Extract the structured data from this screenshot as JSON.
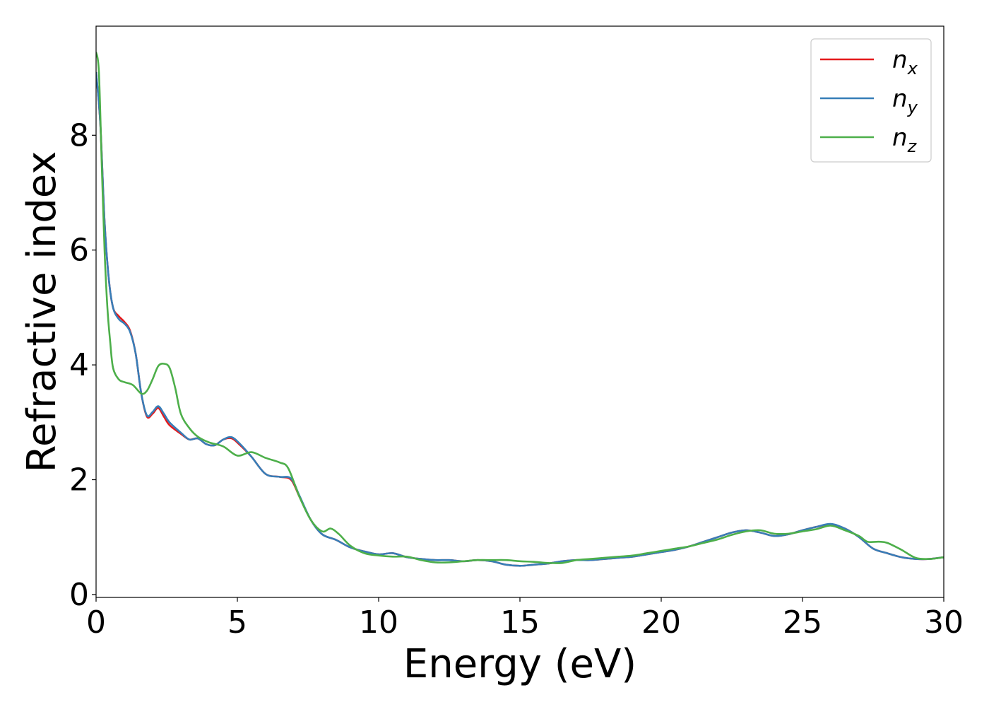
{
  "chart_data": {
    "type": "line",
    "title": "",
    "xlabel": "Energy (eV)",
    "ylabel": "Refractive index",
    "xlim": [
      0,
      30
    ],
    "ylim": [
      -0.05,
      9.9
    ],
    "xticks": [
      0,
      5,
      10,
      15,
      20,
      25,
      30
    ],
    "yticks": [
      0,
      2,
      4,
      6,
      8
    ],
    "grid": false,
    "legend_position": "top-right",
    "series": [
      {
        "name": "n",
        "subscript": "x",
        "color": "#e41a1c",
        "x": [
          0.0,
          0.15,
          0.3,
          0.45,
          0.6,
          0.8,
          1.0,
          1.2,
          1.4,
          1.6,
          1.8,
          2.0,
          2.2,
          2.4,
          2.6,
          3.0,
          3.3,
          3.6,
          3.9,
          4.2,
          4.5,
          4.8,
          5.1,
          5.5,
          6.0,
          6.5,
          6.9,
          7.2,
          7.6,
          8.0,
          8.5,
          9.0,
          9.5,
          10.0,
          10.5,
          11.0,
          11.5,
          12.0,
          12.5,
          13.0,
          13.5,
          14.0,
          14.5,
          15.0,
          15.5,
          16.0,
          16.5,
          17.0,
          17.5,
          18.0,
          18.5,
          19.0,
          19.5,
          20.0,
          20.5,
          21.0,
          21.5,
          22.0,
          22.5,
          23.0,
          23.5,
          24.0,
          24.5,
          25.0,
          25.5,
          26.0,
          26.5,
          27.0,
          27.5,
          28.0,
          28.5,
          29.0,
          29.5,
          30.0
        ],
        "y": [
          9.1,
          8.2,
          6.5,
          5.5,
          5.0,
          4.85,
          4.75,
          4.6,
          4.2,
          3.5,
          3.1,
          3.15,
          3.25,
          3.1,
          2.95,
          2.8,
          2.7,
          2.72,
          2.62,
          2.6,
          2.7,
          2.72,
          2.6,
          2.4,
          2.1,
          2.05,
          2.0,
          1.7,
          1.3,
          1.05,
          0.95,
          0.82,
          0.75,
          0.7,
          0.72,
          0.65,
          0.62,
          0.6,
          0.6,
          0.58,
          0.6,
          0.58,
          0.52,
          0.5,
          0.52,
          0.54,
          0.58,
          0.6,
          0.6,
          0.62,
          0.64,
          0.66,
          0.7,
          0.74,
          0.78,
          0.84,
          0.92,
          1.0,
          1.08,
          1.12,
          1.08,
          1.02,
          1.05,
          1.12,
          1.18,
          1.22,
          1.15,
          1.0,
          0.8,
          0.72,
          0.65,
          0.62,
          0.62,
          0.65
        ]
      },
      {
        "name": "n",
        "subscript": "y",
        "color": "#377eb8",
        "x": [
          0.0,
          0.15,
          0.3,
          0.45,
          0.6,
          0.8,
          1.0,
          1.2,
          1.4,
          1.6,
          1.8,
          2.0,
          2.2,
          2.4,
          2.6,
          3.0,
          3.3,
          3.6,
          3.9,
          4.2,
          4.5,
          4.8,
          5.1,
          5.5,
          6.0,
          6.5,
          6.9,
          7.2,
          7.6,
          8.0,
          8.5,
          9.0,
          9.5,
          10.0,
          10.5,
          11.0,
          11.5,
          12.0,
          12.5,
          13.0,
          13.5,
          14.0,
          14.5,
          15.0,
          15.5,
          16.0,
          16.5,
          17.0,
          17.5,
          18.0,
          18.5,
          19.0,
          19.5,
          20.0,
          20.5,
          21.0,
          21.5,
          22.0,
          22.5,
          23.0,
          23.5,
          24.0,
          24.5,
          25.0,
          25.5,
          26.0,
          26.5,
          27.0,
          27.5,
          28.0,
          28.5,
          29.0,
          29.5,
          30.0
        ],
        "y": [
          9.1,
          8.2,
          6.5,
          5.5,
          5.0,
          4.8,
          4.72,
          4.58,
          4.2,
          3.5,
          3.12,
          3.18,
          3.28,
          3.15,
          3.0,
          2.82,
          2.7,
          2.72,
          2.62,
          2.6,
          2.7,
          2.74,
          2.62,
          2.4,
          2.1,
          2.05,
          2.02,
          1.72,
          1.3,
          1.05,
          0.95,
          0.82,
          0.75,
          0.7,
          0.72,
          0.65,
          0.62,
          0.6,
          0.6,
          0.58,
          0.6,
          0.58,
          0.52,
          0.5,
          0.52,
          0.54,
          0.58,
          0.6,
          0.6,
          0.62,
          0.64,
          0.66,
          0.7,
          0.74,
          0.78,
          0.84,
          0.92,
          1.0,
          1.08,
          1.12,
          1.08,
          1.02,
          1.05,
          1.12,
          1.18,
          1.23,
          1.15,
          1.0,
          0.8,
          0.72,
          0.65,
          0.62,
          0.62,
          0.65
        ]
      },
      {
        "name": "n",
        "subscript": "z",
        "color": "#4daf4a",
        "x": [
          0.0,
          0.1,
          0.2,
          0.3,
          0.4,
          0.5,
          0.6,
          0.8,
          1.0,
          1.3,
          1.6,
          1.8,
          2.0,
          2.2,
          2.4,
          2.6,
          2.8,
          3.0,
          3.3,
          3.6,
          4.0,
          4.5,
          5.0,
          5.5,
          6.0,
          6.5,
          6.8,
          7.2,
          7.6,
          8.0,
          8.3,
          8.6,
          9.0,
          9.5,
          10.0,
          10.5,
          11.0,
          11.5,
          12.0,
          12.5,
          13.0,
          13.5,
          14.0,
          14.5,
          15.0,
          15.5,
          16.0,
          16.5,
          17.0,
          17.5,
          18.0,
          18.5,
          19.0,
          19.5,
          20.0,
          20.5,
          21.0,
          21.5,
          22.0,
          22.5,
          23.0,
          23.5,
          24.0,
          24.5,
          25.0,
          25.5,
          26.0,
          26.5,
          27.0,
          27.3,
          27.7,
          28.0,
          28.5,
          29.0,
          29.5,
          30.0
        ],
        "y": [
          9.45,
          9.1,
          7.5,
          6.0,
          5.0,
          4.4,
          3.95,
          3.75,
          3.7,
          3.65,
          3.5,
          3.55,
          3.75,
          3.98,
          4.02,
          3.95,
          3.6,
          3.15,
          2.9,
          2.75,
          2.65,
          2.58,
          2.42,
          2.48,
          2.38,
          2.3,
          2.2,
          1.7,
          1.3,
          1.1,
          1.15,
          1.05,
          0.85,
          0.72,
          0.68,
          0.66,
          0.66,
          0.6,
          0.56,
          0.56,
          0.58,
          0.6,
          0.6,
          0.6,
          0.58,
          0.57,
          0.55,
          0.55,
          0.6,
          0.62,
          0.64,
          0.66,
          0.68,
          0.72,
          0.76,
          0.8,
          0.84,
          0.9,
          0.96,
          1.04,
          1.1,
          1.12,
          1.06,
          1.06,
          1.1,
          1.14,
          1.2,
          1.12,
          1.02,
          0.92,
          0.92,
          0.9,
          0.78,
          0.64,
          0.62,
          0.65
        ]
      }
    ]
  }
}
